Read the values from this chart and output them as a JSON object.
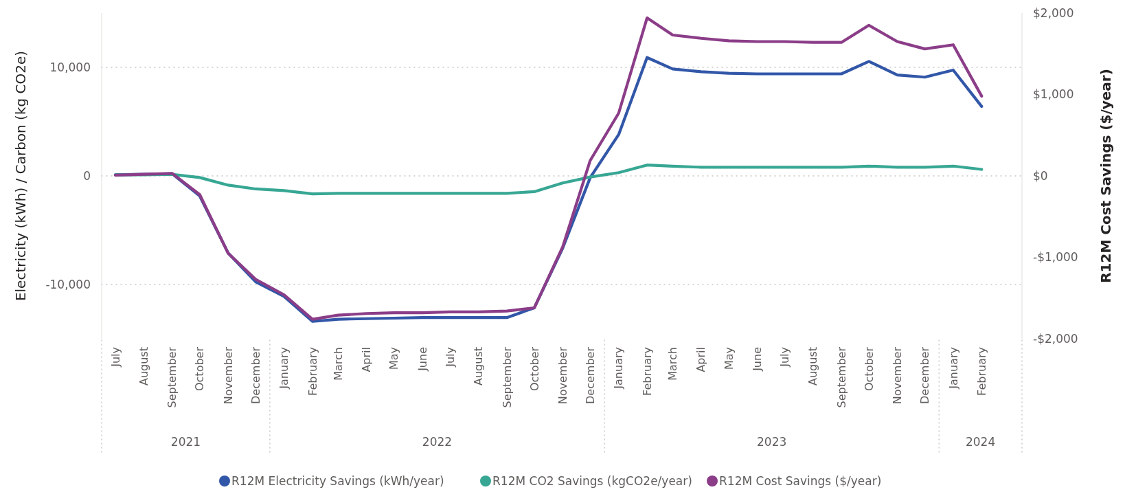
{
  "chart_data": {
    "type": "line",
    "ylabel": "Electricity (kWh) / Carbon (kg CO2e)",
    "y2label": "R12M Cost Savings ($/year)",
    "x": [
      "2021-07",
      "2021-08",
      "2021-09",
      "2021-10",
      "2021-11",
      "2021-12",
      "2022-01",
      "2022-02",
      "2022-03",
      "2022-04",
      "2022-05",
      "2022-06",
      "2022-07",
      "2022-08",
      "2022-09",
      "2022-10",
      "2022-11",
      "2022-12",
      "2023-01",
      "2023-02",
      "2023-03",
      "2023-04",
      "2023-05",
      "2023-06",
      "2023-07",
      "2023-08",
      "2023-09",
      "2023-10",
      "2023-11",
      "2023-12",
      "2024-01",
      "2024-02"
    ],
    "xlim": [
      "2021-06-16",
      "2024-03-16"
    ],
    "xticks": [
      {
        "value": "2021-07",
        "label": "July"
      },
      {
        "value": "2021-08",
        "label": "August"
      },
      {
        "value": "2021-09",
        "label": "September"
      },
      {
        "value": "2021-10",
        "label": "October"
      },
      {
        "value": "2021-11",
        "label": "November"
      },
      {
        "value": "2021-12",
        "label": "December"
      },
      {
        "value": "2022-01",
        "label": "January"
      },
      {
        "value": "2022-02",
        "label": "February"
      },
      {
        "value": "2022-03",
        "label": "March"
      },
      {
        "value": "2022-04",
        "label": "April"
      },
      {
        "value": "2022-05",
        "label": "May"
      },
      {
        "value": "2022-06",
        "label": "June"
      },
      {
        "value": "2022-07",
        "label": "July"
      },
      {
        "value": "2022-08",
        "label": "August"
      },
      {
        "value": "2022-09",
        "label": "September"
      },
      {
        "value": "2022-10",
        "label": "October"
      },
      {
        "value": "2022-11",
        "label": "November"
      },
      {
        "value": "2022-12",
        "label": "December"
      },
      {
        "value": "2023-01",
        "label": "January"
      },
      {
        "value": "2023-02",
        "label": "February"
      },
      {
        "value": "2023-03",
        "label": "March"
      },
      {
        "value": "2023-04",
        "label": "April"
      },
      {
        "value": "2023-05",
        "label": "May"
      },
      {
        "value": "2023-06",
        "label": "June"
      },
      {
        "value": "2023-07",
        "label": "July"
      },
      {
        "value": "2023-08",
        "label": "August"
      },
      {
        "value": "2023-09",
        "label": "September"
      },
      {
        "value": "2023-10",
        "label": "October"
      },
      {
        "value": "2023-11",
        "label": "November"
      },
      {
        "value": "2023-12",
        "label": "December"
      },
      {
        "value": "2024-01",
        "label": "January"
      },
      {
        "value": "2024-02",
        "label": "February"
      }
    ],
    "annotations": [
      "2021",
      "2022",
      "2023",
      "2024"
    ],
    "ylim": [
      -15000,
      15000
    ],
    "yticks": [
      {
        "value": -10000,
        "label": "-10,000"
      },
      {
        "value": 0,
        "label": "0"
      },
      {
        "value": 10000,
        "label": "10,000"
      }
    ],
    "y2lim": [
      -2000,
      2000
    ],
    "y2ticks": [
      {
        "value": -2000,
        "label": "-$2,000"
      },
      {
        "value": -1000,
        "label": "-$1,000"
      },
      {
        "value": 0,
        "label": "$0"
      },
      {
        "value": 1000,
        "label": "$1,000"
      },
      {
        "value": 2000,
        "label": "$2,000"
      }
    ],
    "grid": "y",
    "legend": "bottom",
    "series": [
      {
        "name": "R12M Electricity Savings (kWh/year)",
        "color": "#3257a8",
        "values": [
          100,
          150,
          200,
          -1850,
          -7100,
          -9750,
          -11100,
          -13400,
          -13200,
          -13150,
          -13100,
          -13050,
          -13050,
          -13050,
          -13050,
          -12150,
          -6650,
          -150,
          3800,
          10900,
          9850,
          9600,
          9450,
          9400,
          9400,
          9400,
          9400,
          10550,
          9300,
          9100,
          9750,
          6400
        ]
      },
      {
        "name": "R12M CO2 Savings (kgCO2e/year)",
        "color": "#37a794",
        "values": [
          100,
          100,
          150,
          -150,
          -850,
          -1200,
          -1350,
          -1650,
          -1600,
          -1600,
          -1600,
          -1600,
          -1600,
          -1600,
          -1600,
          -1450,
          -650,
          -100,
          300,
          1000,
          900,
          800,
          800,
          800,
          800,
          800,
          800,
          900,
          800,
          800,
          900,
          600
        ]
      },
      {
        "name": "R12M Cost Savings ($/year)",
        "color": "#8b3d88",
        "axis": "y2",
        "values": [
          10,
          20,
          30,
          -230,
          -950,
          -1270,
          -1460,
          -1760,
          -1710,
          -1690,
          -1680,
          -1680,
          -1670,
          -1670,
          -1660,
          -1620,
          -870,
          190,
          770,
          1940,
          1730,
          1690,
          1660,
          1650,
          1650,
          1640,
          1640,
          1850,
          1650,
          1560,
          1610,
          980
        ]
      }
    ]
  }
}
